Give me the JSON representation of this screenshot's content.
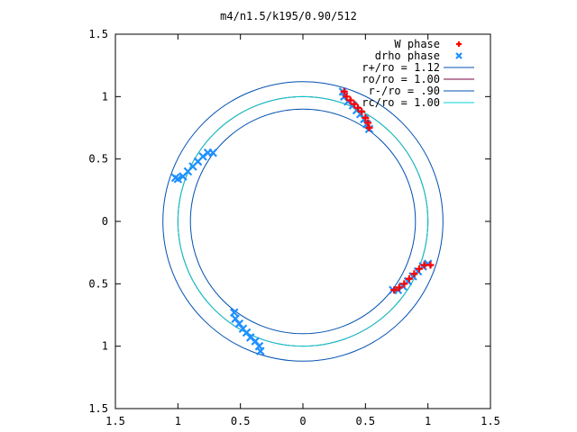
{
  "chart_data": {
    "type": "scatter",
    "title": "m4/n1.5/k195/0.90/512",
    "xlim": [
      -1.5,
      1.5
    ],
    "ylim": [
      -1.5,
      1.5
    ],
    "xticks": [
      -1.5,
      -1,
      -0.5,
      0,
      0.5,
      1,
      1.5
    ],
    "yticks": [
      -1.5,
      -1,
      -0.5,
      0,
      0.5,
      1,
      1.5
    ],
    "xtick_labels": [
      "1.5",
      "1",
      "0.5",
      "0",
      "0.5",
      "1",
      "1.5"
    ],
    "ytick_labels": [
      "1.5",
      "1",
      "0.5",
      "0",
      "0.5",
      "1",
      "1.5"
    ],
    "grid": false,
    "legend_position": "top-right",
    "series": [
      {
        "name": "W phase",
        "kind": "points",
        "marker": "+",
        "color": "#ff0000",
        "points": [
          [
            0.33,
            1.04
          ],
          [
            0.35,
            1.0
          ],
          [
            0.38,
            0.97
          ],
          [
            0.41,
            0.94
          ],
          [
            0.44,
            0.91
          ],
          [
            0.47,
            0.88
          ],
          [
            0.5,
            0.83
          ],
          [
            0.52,
            0.79
          ],
          [
            0.53,
            0.75
          ],
          [
            0.73,
            -0.55
          ],
          [
            0.77,
            -0.53
          ],
          [
            0.81,
            -0.5
          ],
          [
            0.85,
            -0.46
          ],
          [
            0.89,
            -0.42
          ],
          [
            0.93,
            -0.38
          ],
          [
            0.97,
            -0.35
          ],
          [
            1.02,
            -0.35
          ]
        ]
      },
      {
        "name": "drho phase",
        "kind": "points",
        "marker": "x",
        "color": "#1e90ff",
        "points": [
          [
            0.32,
            1.04
          ],
          [
            0.33,
            1.0
          ],
          [
            0.36,
            0.96
          ],
          [
            0.4,
            0.93
          ],
          [
            0.43,
            0.89
          ],
          [
            0.46,
            0.86
          ],
          [
            0.49,
            0.82
          ],
          [
            0.51,
            0.78
          ],
          [
            0.53,
            0.74
          ],
          [
            0.72,
            -0.55
          ],
          [
            0.76,
            -0.55
          ],
          [
            0.8,
            -0.52
          ],
          [
            0.84,
            -0.48
          ],
          [
            0.88,
            -0.44
          ],
          [
            0.92,
            -0.4
          ],
          [
            0.96,
            -0.36
          ],
          [
            1.0,
            -0.34
          ],
          [
            -1.02,
            0.35
          ],
          [
            -1.0,
            0.34
          ],
          [
            -0.96,
            0.36
          ],
          [
            -0.92,
            0.4
          ],
          [
            -0.88,
            0.44
          ],
          [
            -0.84,
            0.48
          ],
          [
            -0.8,
            0.52
          ],
          [
            -0.76,
            0.55
          ],
          [
            -0.72,
            0.55
          ],
          [
            -0.55,
            -0.73
          ],
          [
            -0.54,
            -0.78
          ],
          [
            -0.51,
            -0.82
          ],
          [
            -0.48,
            -0.86
          ],
          [
            -0.45,
            -0.89
          ],
          [
            -0.42,
            -0.93
          ],
          [
            -0.38,
            -0.96
          ],
          [
            -0.35,
            -1.0
          ],
          [
            -0.34,
            -1.04
          ]
        ]
      },
      {
        "name": "r+/ro = 1.12",
        "kind": "circle",
        "radius": 1.12,
        "color": "#0050b0"
      },
      {
        "name": "ro/ro = 1.00",
        "kind": "circle",
        "radius": 1.0,
        "color": "#7b0040"
      },
      {
        "name": "r-/ro = .90",
        "kind": "circle",
        "radius": 0.9,
        "color": "#0050b0"
      },
      {
        "name": "rc/ro = 1.00",
        "kind": "circle",
        "radius": 1.0,
        "color": "#00d0d0"
      }
    ]
  }
}
